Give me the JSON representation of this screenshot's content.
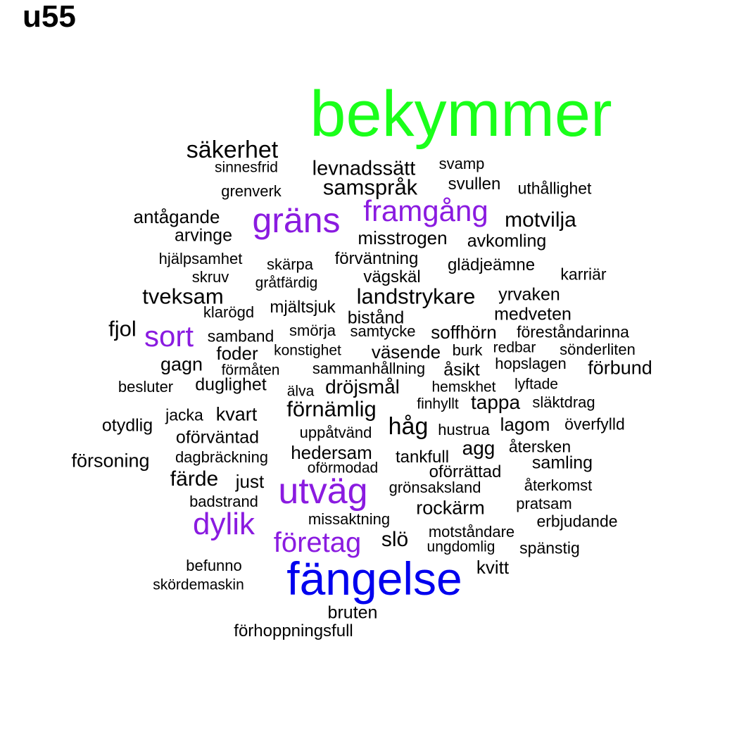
{
  "title": "u55",
  "colors": {
    "green": "#1aff1a",
    "blue": "#0000ee",
    "purple": "#8a1be0",
    "black": "#000000"
  },
  "words": [
    {
      "text": "bekymmer",
      "color": "green"
    },
    {
      "text": "fängelse",
      "color": "blue"
    },
    {
      "text": "utväg",
      "color": "purple"
    },
    {
      "text": "gräns",
      "color": "purple"
    },
    {
      "text": "framgång",
      "color": "purple"
    },
    {
      "text": "sort",
      "color": "purple"
    },
    {
      "text": "dylik",
      "color": "purple"
    },
    {
      "text": "företag",
      "color": "purple"
    },
    {
      "text": "säkerhet",
      "color": "black"
    },
    {
      "text": "sinnesfrid",
      "color": "black"
    },
    {
      "text": "levnadssätt",
      "color": "black"
    },
    {
      "text": "svamp",
      "color": "black"
    },
    {
      "text": "samspråk",
      "color": "black"
    },
    {
      "text": "svullen",
      "color": "black"
    },
    {
      "text": "uthållighet",
      "color": "black"
    },
    {
      "text": "grenverk",
      "color": "black"
    },
    {
      "text": "antågande",
      "color": "black"
    },
    {
      "text": "motvilja",
      "color": "black"
    },
    {
      "text": "arvinge",
      "color": "black"
    },
    {
      "text": "misstrogen",
      "color": "black"
    },
    {
      "text": "avkomling",
      "color": "black"
    },
    {
      "text": "hjälpsamhet",
      "color": "black"
    },
    {
      "text": "skärpa",
      "color": "black"
    },
    {
      "text": "förväntning",
      "color": "black"
    },
    {
      "text": "glädjeämne",
      "color": "black"
    },
    {
      "text": "skruv",
      "color": "black"
    },
    {
      "text": "gråtfärdig",
      "color": "black"
    },
    {
      "text": "vägskäl",
      "color": "black"
    },
    {
      "text": "karriär",
      "color": "black"
    },
    {
      "text": "tveksam",
      "color": "black"
    },
    {
      "text": "landstrykare",
      "color": "black"
    },
    {
      "text": "yrvaken",
      "color": "black"
    },
    {
      "text": "klarögd",
      "color": "black"
    },
    {
      "text": "mjältsjuk",
      "color": "black"
    },
    {
      "text": "bistånd",
      "color": "black"
    },
    {
      "text": "medveten",
      "color": "black"
    },
    {
      "text": "fjol",
      "color": "black"
    },
    {
      "text": "samband",
      "color": "black"
    },
    {
      "text": "smörja",
      "color": "black"
    },
    {
      "text": "samtycke",
      "color": "black"
    },
    {
      "text": "soffhörn",
      "color": "black"
    },
    {
      "text": "föreståndarinna",
      "color": "black"
    },
    {
      "text": "foder",
      "color": "black"
    },
    {
      "text": "konstighet",
      "color": "black"
    },
    {
      "text": "väsende",
      "color": "black"
    },
    {
      "text": "burk",
      "color": "black"
    },
    {
      "text": "redbar",
      "color": "black"
    },
    {
      "text": "sönderliten",
      "color": "black"
    },
    {
      "text": "gagn",
      "color": "black"
    },
    {
      "text": "förmåten",
      "color": "black"
    },
    {
      "text": "sammanhållning",
      "color": "black"
    },
    {
      "text": "åsikt",
      "color": "black"
    },
    {
      "text": "hopslagen",
      "color": "black"
    },
    {
      "text": "förbund",
      "color": "black"
    },
    {
      "text": "besluter",
      "color": "black"
    },
    {
      "text": "duglighet",
      "color": "black"
    },
    {
      "text": "älva",
      "color": "black"
    },
    {
      "text": "dröjsmål",
      "color": "black"
    },
    {
      "text": "hemskhet",
      "color": "black"
    },
    {
      "text": "lyftade",
      "color": "black"
    },
    {
      "text": "förnämlig",
      "color": "black"
    },
    {
      "text": "finhyllt",
      "color": "black"
    },
    {
      "text": "tappa",
      "color": "black"
    },
    {
      "text": "släktdrag",
      "color": "black"
    },
    {
      "text": "jacka",
      "color": "black"
    },
    {
      "text": "kvart",
      "color": "black"
    },
    {
      "text": "otydlig",
      "color": "black"
    },
    {
      "text": "håg",
      "color": "black"
    },
    {
      "text": "hustrua",
      "color": "black"
    },
    {
      "text": "lagom",
      "color": "black"
    },
    {
      "text": "överfylld",
      "color": "black"
    },
    {
      "text": "oförväntad",
      "color": "black"
    },
    {
      "text": "uppåtvänd",
      "color": "black"
    },
    {
      "text": "agg",
      "color": "black"
    },
    {
      "text": "återsken",
      "color": "black"
    },
    {
      "text": "försoning",
      "color": "black"
    },
    {
      "text": "dagbräckning",
      "color": "black"
    },
    {
      "text": "hedersam",
      "color": "black"
    },
    {
      "text": "tankfull",
      "color": "black"
    },
    {
      "text": "samling",
      "color": "black"
    },
    {
      "text": "oförmodad",
      "color": "black"
    },
    {
      "text": "oförrättad",
      "color": "black"
    },
    {
      "text": "färde",
      "color": "black"
    },
    {
      "text": "just",
      "color": "black"
    },
    {
      "text": "grönsaksland",
      "color": "black"
    },
    {
      "text": "återkomst",
      "color": "black"
    },
    {
      "text": "badstrand",
      "color": "black"
    },
    {
      "text": "rockärm",
      "color": "black"
    },
    {
      "text": "pratsam",
      "color": "black"
    },
    {
      "text": "missaktning",
      "color": "black"
    },
    {
      "text": "erbjudande",
      "color": "black"
    },
    {
      "text": "motståndare",
      "color": "black"
    },
    {
      "text": "slö",
      "color": "black"
    },
    {
      "text": "ungdomlig",
      "color": "black"
    },
    {
      "text": "spänstig",
      "color": "black"
    },
    {
      "text": "befunno",
      "color": "black"
    },
    {
      "text": "kvitt",
      "color": "black"
    },
    {
      "text": "skördemaskin",
      "color": "black"
    },
    {
      "text": "bruten",
      "color": "black"
    },
    {
      "text": "förhoppningsfull",
      "color": "black"
    }
  ]
}
